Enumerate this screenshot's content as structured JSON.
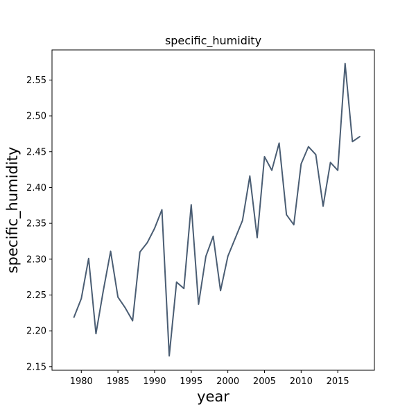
{
  "chart_data": {
    "type": "line",
    "title": "specific_humidity",
    "xlabel": "year",
    "ylabel": "specific_humidity",
    "xlim": [
      1976,
      2020
    ],
    "ylim": [
      2.145,
      2.592
    ],
    "xticks": [
      1980,
      1985,
      1990,
      1995,
      2000,
      2005,
      2010,
      2015
    ],
    "yticks": [
      2.15,
      2.2,
      2.25,
      2.3,
      2.35,
      2.4,
      2.45,
      2.5,
      2.55
    ],
    "x_tick_labels": [
      "1980",
      "1985",
      "1990",
      "1995",
      "2000",
      "2005",
      "2010",
      "2015"
    ],
    "y_tick_labels": [
      "2.15",
      "2.20",
      "2.25",
      "2.30",
      "2.35",
      "2.40",
      "2.45",
      "2.50",
      "2.55"
    ],
    "grid": false,
    "line_color": "#4a5d73",
    "series": [
      {
        "x": [
          1979,
          1980,
          1981,
          1982,
          1983,
          1984,
          1985,
          1986,
          1987,
          1988,
          1989,
          1990,
          1991,
          1992,
          1993,
          1994,
          1995,
          1996,
          1997,
          1998,
          1999,
          2000,
          2001,
          2002,
          2003,
          2004,
          2005,
          2006,
          2007,
          2008,
          2009,
          2010,
          2011,
          2012,
          2013,
          2014,
          2015,
          2016,
          2017,
          2018
        ],
        "y": [
          2.219,
          2.245,
          2.301,
          2.196,
          2.256,
          2.311,
          2.247,
          2.232,
          2.214,
          2.31,
          2.323,
          2.343,
          2.369,
          2.165,
          2.268,
          2.259,
          2.376,
          2.237,
          2.304,
          2.332,
          2.256,
          2.304,
          2.329,
          2.354,
          2.416,
          2.33,
          2.443,
          2.424,
          2.462,
          2.362,
          2.348,
          2.433,
          2.457,
          2.446,
          2.374,
          2.435,
          2.424,
          2.573,
          2.464,
          2.471
        ]
      }
    ]
  }
}
